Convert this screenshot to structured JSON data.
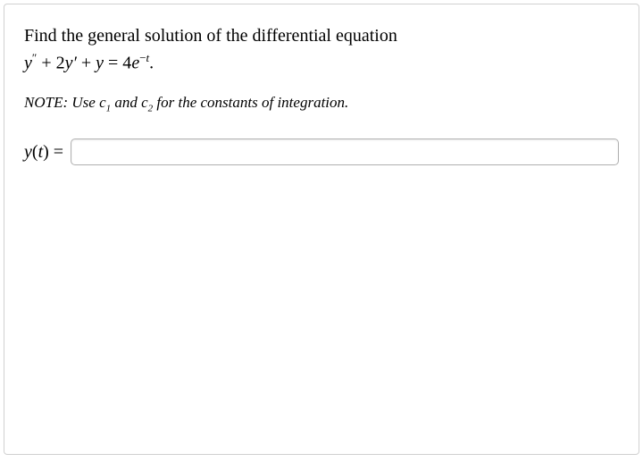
{
  "problem": {
    "text": "Find the general solution of the differential equation",
    "equation_parts": {
      "y": "y",
      "dprime": "″",
      "plus1": " + 2",
      "yprime": "y′",
      "plus2": " + ",
      "y2": "y",
      "equals": " = 4",
      "e": "e",
      "exp_minus": "−",
      "exp_t": "t",
      "period": "."
    }
  },
  "note": {
    "prefix": "NOTE: Use ",
    "c1": "c",
    "c1_sub": "1",
    "and": " and ",
    "c2": "c",
    "c2_sub": "2",
    "suffix": " for the constants of integration."
  },
  "answer": {
    "label_y": "y",
    "label_paren_open": "(",
    "label_t": "t",
    "label_paren_close": ")",
    "label_equals": " = ",
    "value": ""
  },
  "styles": {
    "border_color": "#d0d0d0",
    "input_border": "#b0b0b0",
    "text_color": "#000000",
    "background": "#ffffff",
    "problem_fontsize": 20,
    "note_fontsize": 17
  }
}
